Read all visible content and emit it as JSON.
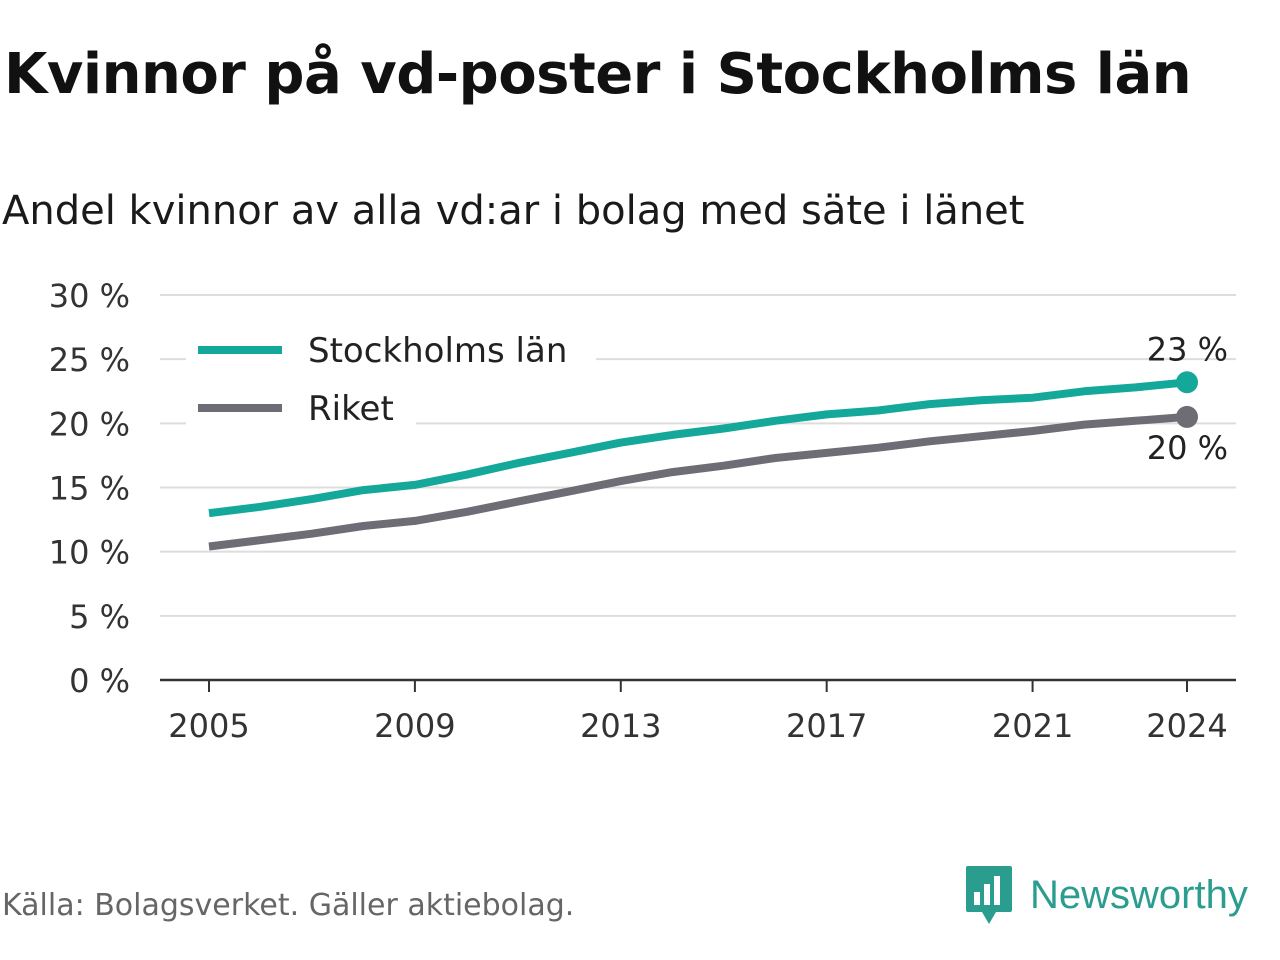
{
  "header": {
    "title": "Kvinnor på vd-poster i Stockholms län",
    "subtitle": "Andel kvinnor av alla vd:ar i bolag med säte i länet"
  },
  "footer": {
    "source": "Källa: Bolagsverket. Gäller aktiebolag.",
    "brand": "Newsworthy",
    "brand_icon": "bar-chart-speech-bubble-icon"
  },
  "colors": {
    "stockholm": "#14a89a",
    "riket": "#6e6d75",
    "grid": "#dddddd",
    "axis": "#333333",
    "brand": "#2a9d8f"
  },
  "chart_data": {
    "type": "line",
    "x": [
      2005,
      2006,
      2007,
      2008,
      2009,
      2010,
      2011,
      2012,
      2013,
      2014,
      2015,
      2016,
      2017,
      2018,
      2019,
      2020,
      2021,
      2022,
      2023,
      2024
    ],
    "xticks": [
      2005,
      2009,
      2013,
      2017,
      2021,
      2024
    ],
    "xtick_labels": [
      "2005",
      "2009",
      "2013",
      "2017",
      "2021",
      "2024"
    ],
    "ylim": [
      0,
      30
    ],
    "yticks": [
      0,
      5,
      10,
      15,
      20,
      25,
      30
    ],
    "ytick_labels": [
      "0 %",
      "5 %",
      "10 %",
      "15 %",
      "20 %",
      "25 %",
      "30 %"
    ],
    "grid": true,
    "legend_position": "top-left",
    "series": [
      {
        "name": "Stockholms län",
        "color": "#14a89a",
        "values": [
          13.0,
          13.5,
          14.1,
          14.8,
          15.2,
          16.0,
          16.9,
          17.7,
          18.5,
          19.1,
          19.6,
          20.2,
          20.7,
          21.0,
          21.5,
          21.8,
          22.0,
          22.5,
          22.8,
          23.2
        ],
        "end_label": "23 %",
        "end_label_position": "above"
      },
      {
        "name": "Riket",
        "color": "#6e6d75",
        "values": [
          10.4,
          10.9,
          11.4,
          12.0,
          12.4,
          13.1,
          13.9,
          14.7,
          15.5,
          16.2,
          16.7,
          17.3,
          17.7,
          18.1,
          18.6,
          19.0,
          19.4,
          19.9,
          20.2,
          20.5
        ],
        "end_label": "20 %",
        "end_label_position": "below"
      }
    ]
  }
}
